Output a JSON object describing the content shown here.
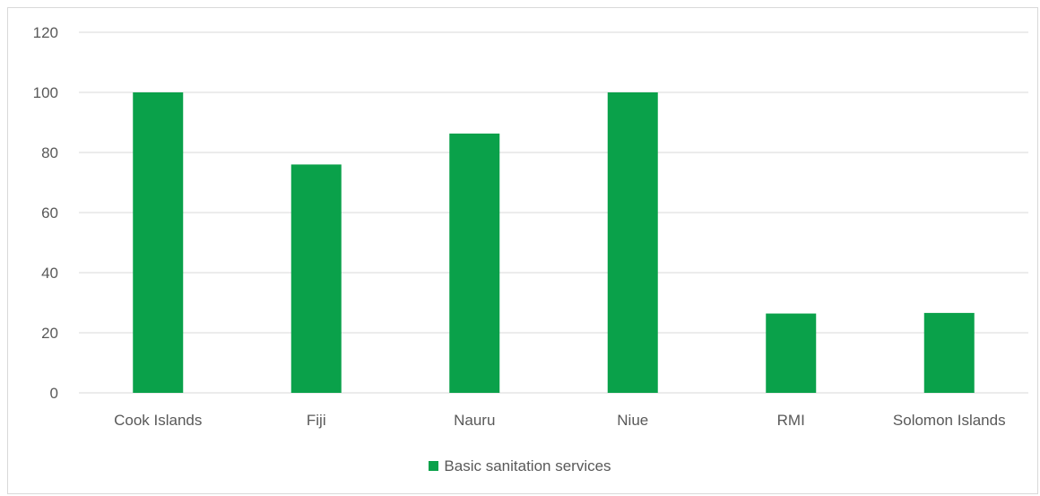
{
  "chart_data": {
    "type": "bar",
    "categories": [
      "Cook Islands",
      "Fiji",
      "Nauru",
      "Niue",
      "RMI",
      "Solomon Islands"
    ],
    "series": [
      {
        "name": "Basic sanitation services",
        "values": [
          100,
          76,
          86.3,
          100,
          26.4,
          26.6
        ],
        "color": "#0aa14a"
      }
    ],
    "yticks": [
      0,
      20,
      40,
      60,
      80,
      100,
      120
    ],
    "ylim": [
      0,
      120
    ],
    "grid": true,
    "legend_position": "bottom",
    "title": "",
    "xlabel": "",
    "ylabel": ""
  }
}
